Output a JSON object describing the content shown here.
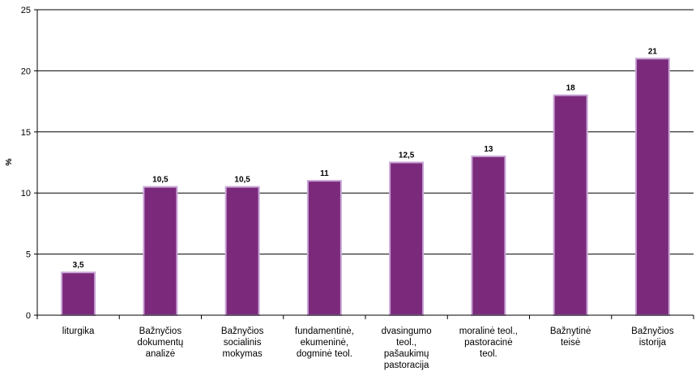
{
  "chart_data": {
    "type": "bar",
    "title": "",
    "xlabel": "",
    "ylabel": "%",
    "ylim": [
      0,
      25
    ],
    "yticks": [
      0,
      5,
      10,
      15,
      20,
      25
    ],
    "grid": true,
    "legend": "none",
    "bar_color": "#7b2a7b",
    "bar_edge_color": "#c9a6d6",
    "categories": [
      [
        "liturgika"
      ],
      [
        "Bažnyčios",
        "dokumentų",
        "analizė"
      ],
      [
        "Bažnyčios",
        "socialinis",
        "mokymas"
      ],
      [
        "fundamentinė,",
        "ekumeninė,",
        "dogminė teol."
      ],
      [
        "dvasingumo",
        "teol.,",
        "pašaukimų",
        "pastoracija"
      ],
      [
        "moralinė teol.,",
        "pastoracinė",
        "teol."
      ],
      [
        "Bažnytinė",
        "teisė"
      ],
      [
        "Bažnyčios",
        "istorija"
      ]
    ],
    "values": [
      3.5,
      10.5,
      10.5,
      11,
      12.5,
      13,
      18,
      21
    ],
    "value_labels": [
      "3,5",
      "10,5",
      "10,5",
      "11",
      "12,5",
      "13",
      "18",
      "21"
    ]
  }
}
